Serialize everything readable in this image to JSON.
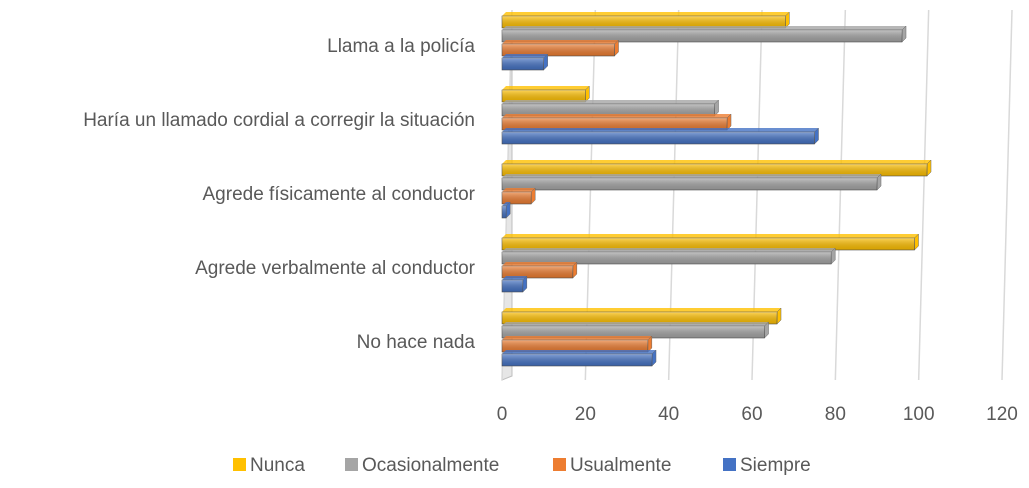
{
  "chart_data": {
    "type": "bar",
    "orientation": "horizontal",
    "categories": [
      "Llama a la policía",
      "Haría un llamado cordial a corregir la situación",
      "Agrede físicamente al conductor",
      "Agrede verbalmente al conductor",
      "No hace nada"
    ],
    "series": [
      {
        "name": "Nunca",
        "color": "#ffc000",
        "values": [
          68,
          20,
          102,
          99,
          66
        ]
      },
      {
        "name": "Ocasionalmente",
        "color": "#a5a5a5",
        "values": [
          96,
          51,
          90,
          79,
          63
        ]
      },
      {
        "name": "Usualmente",
        "color": "#ed7d31",
        "values": [
          27,
          54,
          7,
          17,
          35
        ]
      },
      {
        "name": "Siempre",
        "color": "#4472c4",
        "values": [
          10,
          75,
          1,
          5,
          36
        ]
      }
    ],
    "xlim": [
      0,
      120
    ],
    "xticks": [
      0,
      20,
      40,
      60,
      80,
      100,
      120
    ],
    "grid": true,
    "legend": "bottom"
  }
}
